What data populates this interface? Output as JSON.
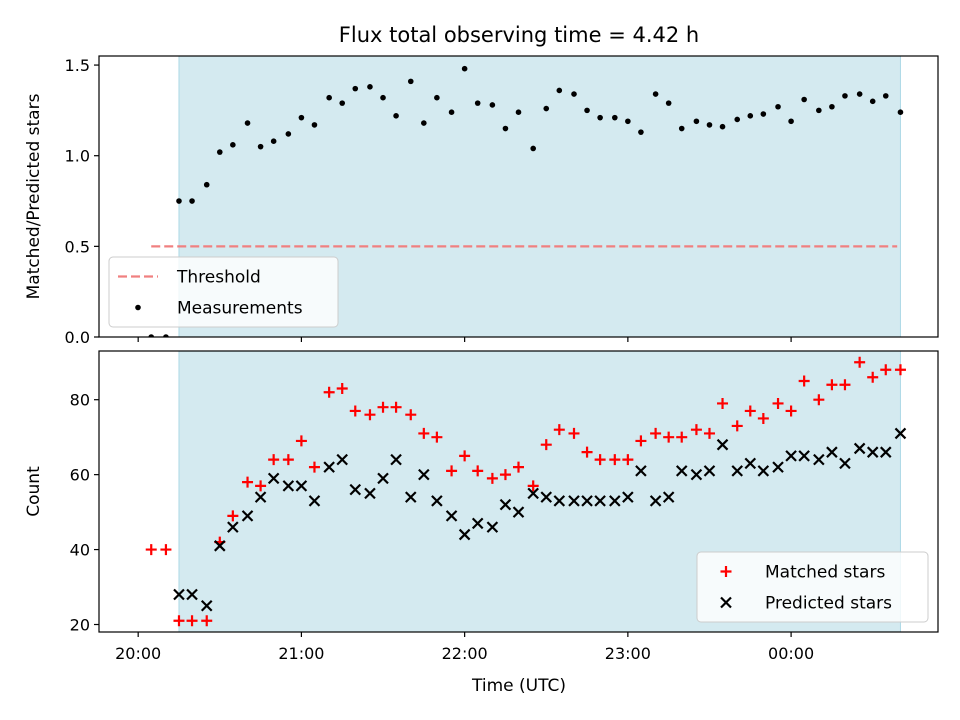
{
  "chart_data": {
    "title": "Flux total observing time = 4.42 h",
    "xlabel": "Time (UTC)",
    "x_unit": "hours since 20:00 UTC",
    "xlim": [
      -0.24,
      4.9
    ],
    "x_ticks": [
      0,
      1,
      2,
      3,
      4
    ],
    "x_tick_labels": [
      "20:00",
      "21:00",
      "22:00",
      "23:00",
      "00:00"
    ],
    "observing_window": {
      "start": 0.25,
      "end": 4.67,
      "color": "#d4eaf0"
    },
    "panels": [
      {
        "type": "scatter",
        "ylabel": "Matched/Predicted stars",
        "ylim": [
          0,
          1.55
        ],
        "y_ticks": [
          0.0,
          0.5,
          1.0,
          1.5
        ],
        "y_tick_labels": [
          "0.0",
          "0.5",
          "1.0",
          "1.5"
        ],
        "legend": "lower-left",
        "threshold": {
          "name": "Threshold",
          "value": 0.5,
          "x_start": 0.08,
          "x_end": 4.65,
          "color": "#f08080"
        },
        "series": [
          {
            "name": "Measurements",
            "marker": "dot",
            "color": "#000000",
            "x": [
              0.08,
              0.17,
              0.25,
              0.33,
              0.42,
              0.5,
              0.58,
              0.67,
              0.75,
              0.83,
              0.92,
              1.0,
              1.08,
              1.17,
              1.25,
              1.33,
              1.42,
              1.5,
              1.58,
              1.67,
              1.75,
              1.83,
              1.92,
              2.0,
              2.08,
              2.17,
              2.25,
              2.33,
              2.42,
              2.5,
              2.58,
              2.67,
              2.75,
              2.83,
              2.92,
              3.0,
              3.08,
              3.17,
              3.25,
              3.33,
              3.42,
              3.5,
              3.58,
              3.67,
              3.75,
              3.83,
              3.92,
              4.0,
              4.08,
              4.17,
              4.25,
              4.33,
              4.42,
              4.5,
              4.58,
              4.67
            ],
            "y": [
              0.0,
              0.0,
              0.75,
              0.75,
              0.84,
              1.02,
              1.06,
              1.18,
              1.05,
              1.08,
              1.12,
              1.21,
              1.17,
              1.32,
              1.29,
              1.37,
              1.38,
              1.32,
              1.22,
              1.41,
              1.18,
              1.32,
              1.24,
              1.48,
              1.29,
              1.28,
              1.15,
              1.24,
              1.04,
              1.26,
              1.36,
              1.34,
              1.25,
              1.21,
              1.21,
              1.19,
              1.13,
              1.34,
              1.29,
              1.15,
              1.19,
              1.17,
              1.16,
              1.2,
              1.22,
              1.23,
              1.27,
              1.19,
              1.31,
              1.25,
              1.27,
              1.33,
              1.34,
              1.3,
              1.33,
              1.24
            ]
          }
        ]
      },
      {
        "type": "scatter",
        "ylabel": "Count",
        "ylim": [
          18,
          93
        ],
        "y_ticks": [
          20,
          40,
          60,
          80
        ],
        "y_tick_labels": [
          "20",
          "40",
          "60",
          "80"
        ],
        "legend": "lower-right",
        "series": [
          {
            "name": "Matched stars",
            "marker": "plus",
            "color": "#ff0000",
            "x": [
              0.08,
              0.17,
              0.25,
              0.33,
              0.42,
              0.5,
              0.58,
              0.67,
              0.75,
              0.83,
              0.92,
              1.0,
              1.08,
              1.17,
              1.25,
              1.33,
              1.42,
              1.5,
              1.58,
              1.67,
              1.75,
              1.83,
              1.92,
              2.0,
              2.08,
              2.17,
              2.25,
              2.33,
              2.42,
              2.5,
              2.58,
              2.67,
              2.75,
              2.83,
              2.92,
              3.0,
              3.08,
              3.17,
              3.25,
              3.33,
              3.42,
              3.5,
              3.58,
              3.67,
              3.75,
              3.83,
              3.92,
              4.0,
              4.08,
              4.17,
              4.25,
              4.33,
              4.42,
              4.5,
              4.58,
              4.67
            ],
            "y": [
              40,
              40,
              21,
              21,
              21,
              42,
              49,
              58,
              57,
              64,
              64,
              69,
              62,
              82,
              83,
              77,
              76,
              78,
              78,
              76,
              71,
              70,
              61,
              65,
              61,
              59,
              60,
              62,
              57,
              68,
              72,
              71,
              66,
              64,
              64,
              64,
              69,
              71,
              70,
              70,
              72,
              71,
              79,
              73,
              77,
              75,
              79,
              77,
              85,
              80,
              84,
              84,
              90,
              86,
              88,
              88
            ]
          },
          {
            "name": "Predicted stars",
            "marker": "x",
            "color": "#000000",
            "x": [
              0.25,
              0.33,
              0.42,
              0.5,
              0.58,
              0.67,
              0.75,
              0.83,
              0.92,
              1.0,
              1.08,
              1.17,
              1.25,
              1.33,
              1.42,
              1.5,
              1.58,
              1.67,
              1.75,
              1.83,
              1.92,
              2.0,
              2.08,
              2.17,
              2.25,
              2.33,
              2.42,
              2.5,
              2.58,
              2.67,
              2.75,
              2.83,
              2.92,
              3.0,
              3.08,
              3.17,
              3.25,
              3.33,
              3.42,
              3.5,
              3.58,
              3.67,
              3.75,
              3.83,
              3.92,
              4.0,
              4.08,
              4.17,
              4.25,
              4.33,
              4.42,
              4.5,
              4.58,
              4.67
            ],
            "y": [
              28,
              28,
              25,
              41,
              46,
              49,
              54,
              59,
              57,
              57,
              53,
              62,
              64,
              56,
              55,
              59,
              64,
              54,
              60,
              53,
              49,
              44,
              47,
              46,
              52,
              50,
              55,
              54,
              53,
              53,
              53,
              53,
              53,
              54,
              61,
              53,
              54,
              61,
              60,
              61,
              68,
              61,
              63,
              61,
              62,
              65,
              65,
              64,
              66,
              63,
              67,
              66,
              66,
              71
            ]
          }
        ]
      }
    ]
  }
}
